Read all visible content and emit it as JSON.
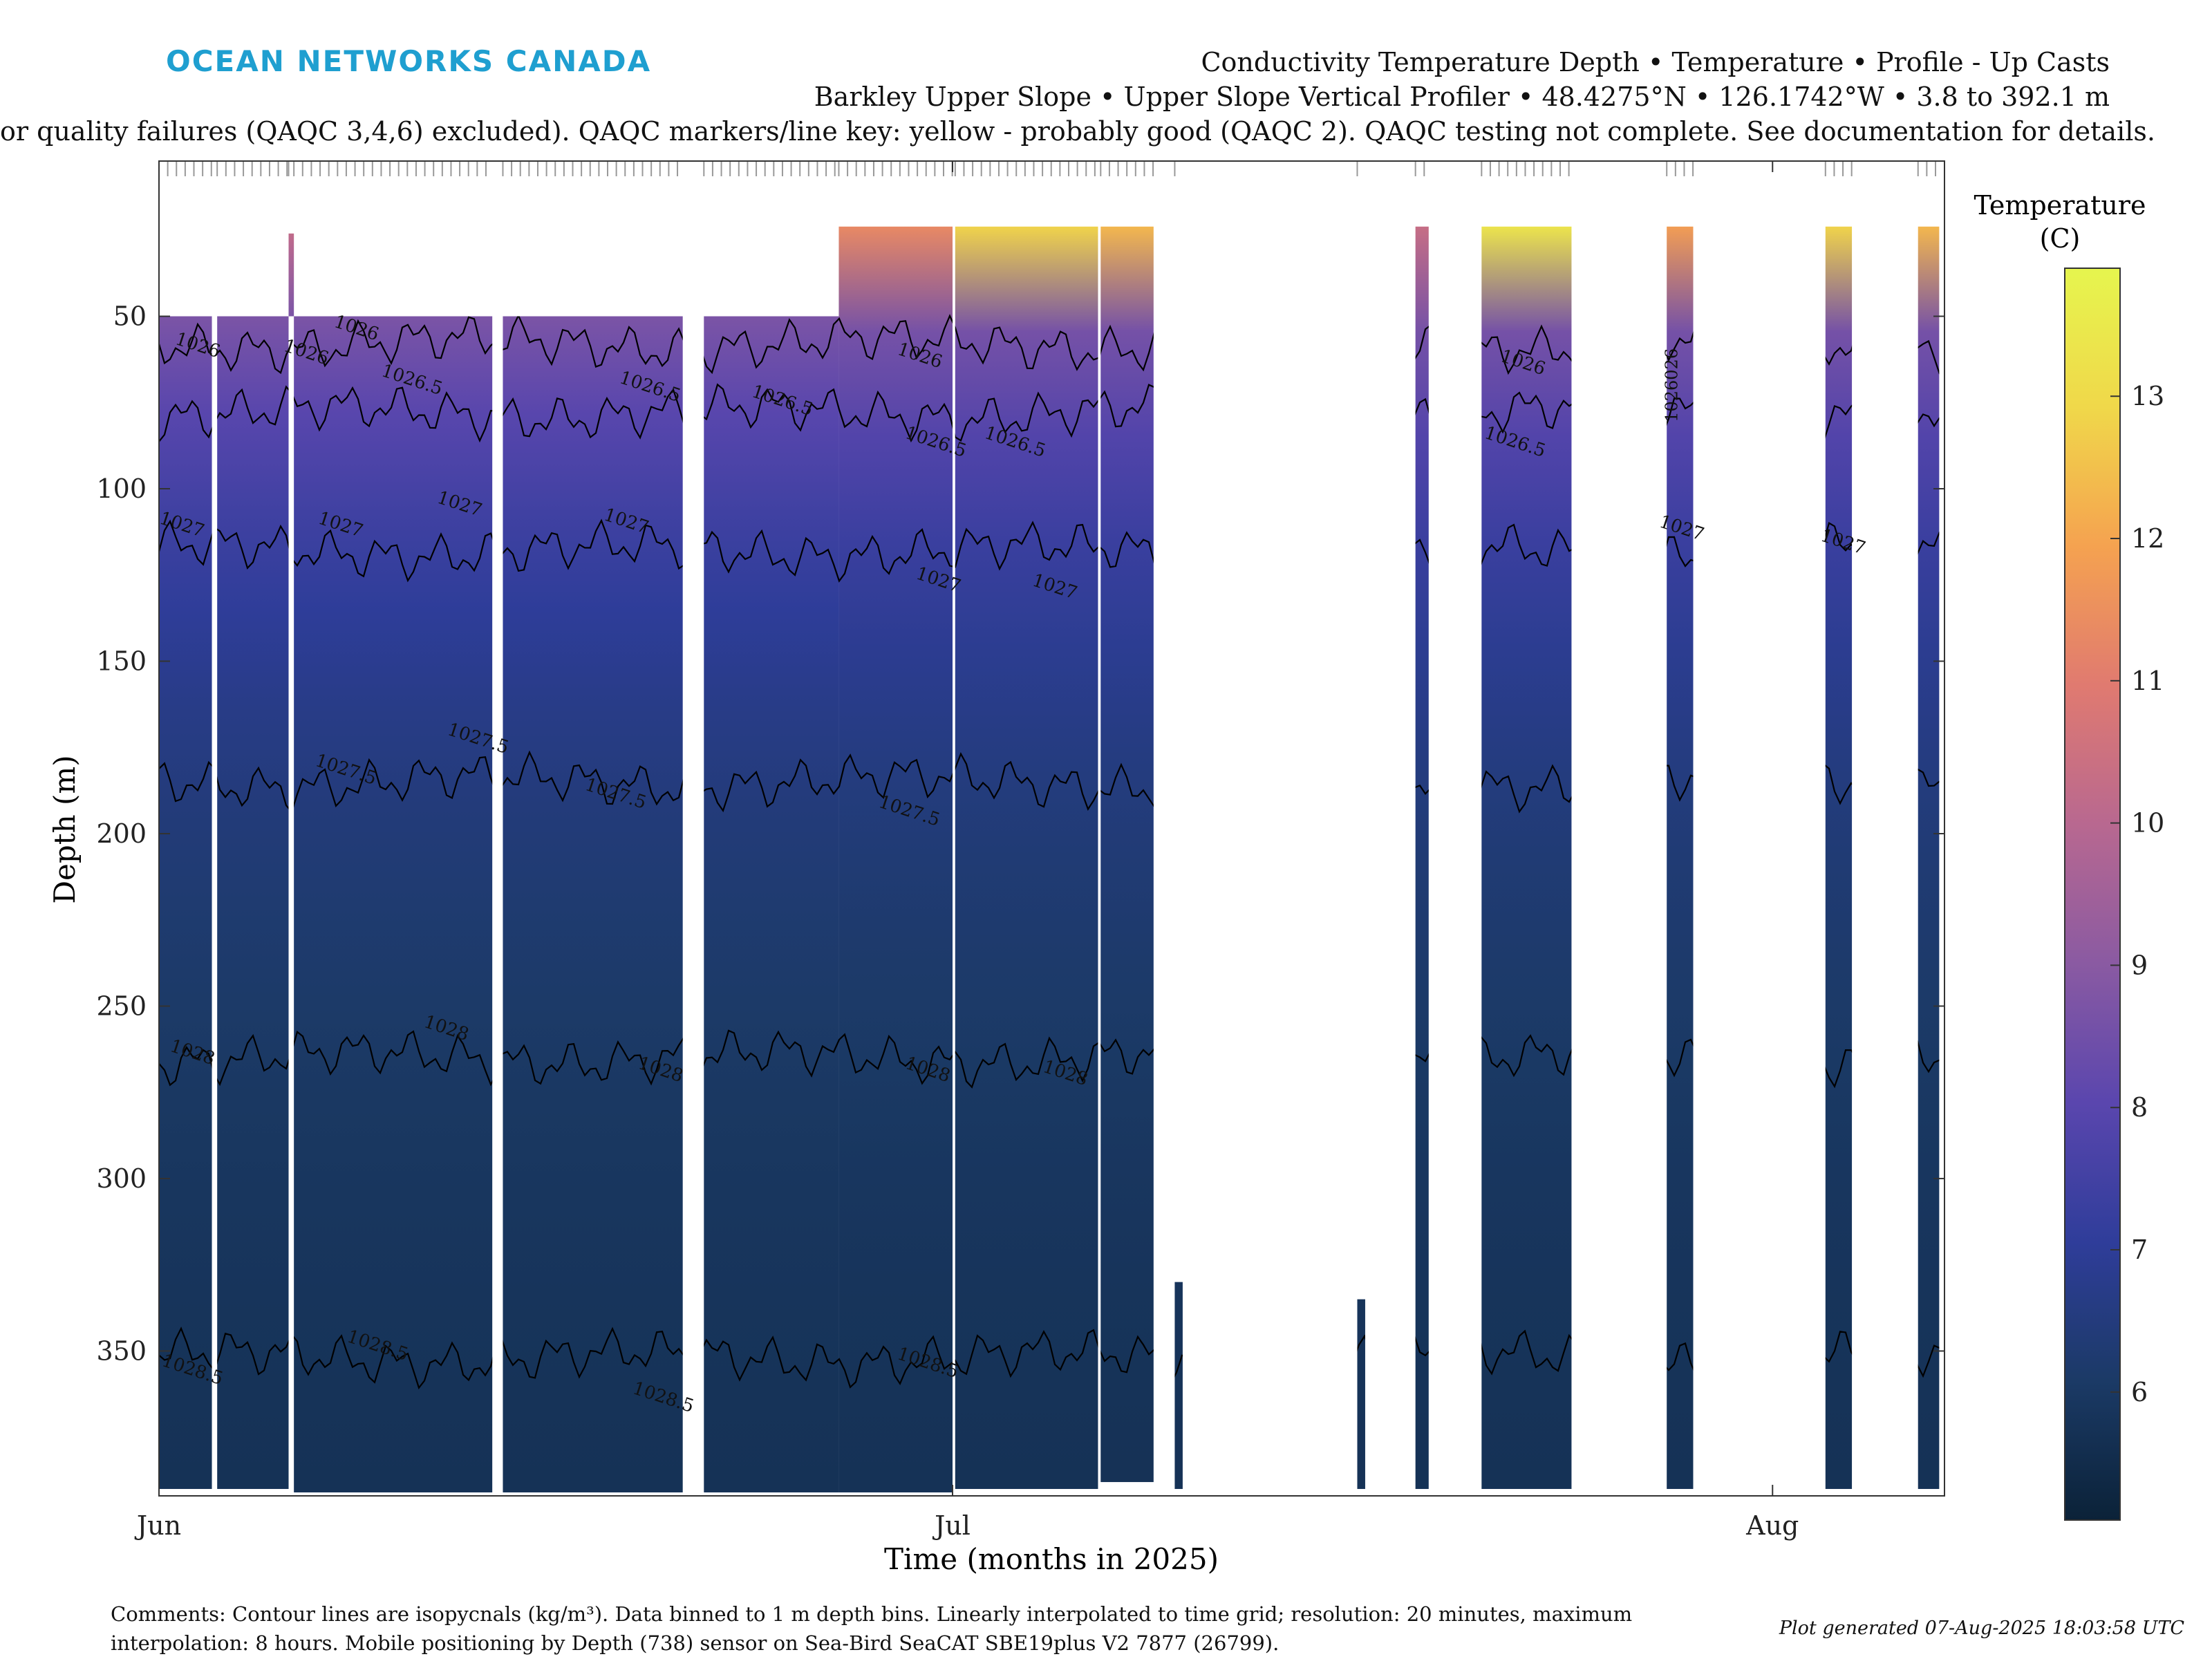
{
  "header": {
    "logo": "OCEAN NETWORKS CANADA",
    "title_line1": "Conductivity Temperature Depth • Temperature • Profile - Up Casts",
    "title_line2": "Barkley Upper Slope • Upper Slope Vertical Profiler • 48.4275°N • 126.1742°W • 3.8 to 392.1 m",
    "title_line3": "or quality failures (QAQC 3,4,6) excluded). QAQC markers/line key: yellow - probably good (QAQC 2). QAQC testing not complete. See documentation for details."
  },
  "footer": {
    "comment_line1": "Comments: Contour lines are isopycnals (kg/m³). Data binned to 1 m depth bins. Linearly interpolated to time grid; resolution: 20 minutes, maximum",
    "comment_line2": "interpolation: 8 hours. Mobile positioning by Depth (738) sensor on Sea-Bird SeaCAT SBE19plus V2 7877 (26799).",
    "generated": "Plot generated 07-Aug-2025 18:03:58 UTC"
  },
  "chart_data": {
    "type": "heatmap",
    "xlabel": "Time (months in 2025)",
    "ylabel": "Depth (m)",
    "x_ticks": [
      {
        "label": "Jun",
        "day": 0
      },
      {
        "label": "Jul",
        "day": 30
      },
      {
        "label": "Aug",
        "day": 61
      }
    ],
    "xlim_days": [
      0,
      67.5
    ],
    "ylim": [
      392,
      5
    ],
    "y_reversed": true,
    "y_ticks": [
      50,
      100,
      150,
      200,
      250,
      300,
      350
    ],
    "colorbar": {
      "label_line1": "Temperature",
      "label_line2": "(C)",
      "range": [
        5.1,
        13.9
      ],
      "ticks": [
        6,
        7,
        8,
        9,
        10,
        11,
        12,
        13
      ],
      "colors": [
        "#0b2238",
        "#1b3a66",
        "#2f3d9a",
        "#5a46ae",
        "#8a5aa2",
        "#b86890",
        "#e07a70",
        "#f5a250",
        "#f0d84a",
        "#e6f54e"
      ]
    },
    "data_blocks": [
      {
        "day_start": 0.0,
        "day_end": 2.0,
        "depth_top": 50,
        "depth_bottom": 390,
        "temp_surface": 9.0
      },
      {
        "day_start": 2.2,
        "day_end": 4.9,
        "depth_top": 50,
        "depth_bottom": 390,
        "temp_surface": 9.0
      },
      {
        "day_start": 4.9,
        "day_end": 5.1,
        "depth_top": 26,
        "depth_bottom": 50,
        "temp_surface": 9.5
      },
      {
        "day_start": 5.1,
        "day_end": 12.6,
        "depth_top": 50,
        "depth_bottom": 391,
        "temp_surface": 8.8
      },
      {
        "day_start": 13.0,
        "day_end": 19.8,
        "depth_top": 50,
        "depth_bottom": 391,
        "temp_surface": 8.4
      },
      {
        "day_start": 20.6,
        "day_end": 25.7,
        "depth_top": 50,
        "depth_bottom": 391,
        "temp_surface": 8.6
      },
      {
        "day_start": 25.7,
        "day_end": 30.0,
        "depth_top": 24,
        "depth_bottom": 391,
        "temp_surface": 10.5
      },
      {
        "day_start": 30.1,
        "day_end": 35.5,
        "depth_top": 24,
        "depth_bottom": 390,
        "temp_surface": 12.0
      },
      {
        "day_start": 35.6,
        "day_end": 37.6,
        "depth_top": 24,
        "depth_bottom": 388,
        "temp_surface": 11.5
      },
      {
        "day_start": 38.4,
        "day_end": 38.7,
        "depth_top": 330,
        "depth_bottom": 390,
        "temp_surface": 5.6
      },
      {
        "day_start": 45.3,
        "day_end": 45.6,
        "depth_top": 335,
        "depth_bottom": 390,
        "temp_surface": 5.6
      },
      {
        "day_start": 47.5,
        "day_end": 48.0,
        "depth_top": 24,
        "depth_bottom": 390,
        "temp_surface": 9.5
      },
      {
        "day_start": 50.0,
        "day_end": 53.4,
        "depth_top": 24,
        "depth_bottom": 390,
        "temp_surface": 12.5
      },
      {
        "day_start": 57.0,
        "day_end": 58.0,
        "depth_top": 24,
        "depth_bottom": 390,
        "temp_surface": 11.0
      },
      {
        "day_start": 63.0,
        "day_end": 64.0,
        "depth_top": 24,
        "depth_bottom": 390,
        "temp_surface": 12.0
      },
      {
        "day_start": 66.5,
        "day_end": 67.3,
        "depth_top": 24,
        "depth_bottom": 390,
        "temp_surface": 11.5
      }
    ],
    "isopycnals": [
      {
        "label": "1026",
        "depth": 58
      },
      {
        "label": "1026.5",
        "depth": 78
      },
      {
        "label": "1027",
        "depth": 118
      },
      {
        "label": "1027.5",
        "depth": 185
      },
      {
        "label": "1028",
        "depth": 265
      },
      {
        "label": "1028.5",
        "depth": 352
      }
    ],
    "isopycnal_label_positions": [
      {
        "label": "1026",
        "day": 1.4,
        "depth": 60
      },
      {
        "label": "1026",
        "day": 5.5,
        "depth": 62
      },
      {
        "label": "1026",
        "day": 7.4,
        "depth": 55
      },
      {
        "label": "1026.5",
        "day": 9.5,
        "depth": 70
      },
      {
        "label": "1026.5",
        "day": 18.5,
        "depth": 72
      },
      {
        "label": "1026.5",
        "day": 23.5,
        "depth": 76
      },
      {
        "label": "1026.5",
        "day": 29.3,
        "depth": 88
      },
      {
        "label": "1026.5",
        "day": 32.3,
        "depth": 88
      },
      {
        "label": "1026",
        "day": 28.7,
        "depth": 63
      },
      {
        "label": "1026",
        "day": 51.5,
        "depth": 65
      },
      {
        "label": "1026.5",
        "day": 51.2,
        "depth": 88
      },
      {
        "label": "1027",
        "day": 0.8,
        "depth": 112
      },
      {
        "label": "1027",
        "day": 6.8,
        "depth": 112
      },
      {
        "label": "1027",
        "day": 11.3,
        "depth": 106
      },
      {
        "label": "1027",
        "day": 17.6,
        "depth": 111
      },
      {
        "label": "1027",
        "day": 29.4,
        "depth": 128
      },
      {
        "label": "1027",
        "day": 33.8,
        "depth": 130
      },
      {
        "label": "1027",
        "day": 57.5,
        "depth": 113
      },
      {
        "label": "1027",
        "day": 63.6,
        "depth": 117
      },
      {
        "label": "1027.5",
        "day": 7.0,
        "depth": 183
      },
      {
        "label": "1027.5",
        "day": 12.0,
        "depth": 174
      },
      {
        "label": "1027.5",
        "day": 17.2,
        "depth": 190
      },
      {
        "label": "1027.5",
        "day": 28.3,
        "depth": 195
      },
      {
        "label": "1028",
        "day": 1.2,
        "depth": 265
      },
      {
        "label": "1028",
        "day": 10.8,
        "depth": 258
      },
      {
        "label": "1028",
        "day": 18.9,
        "depth": 270
      },
      {
        "label": "1028",
        "day": 29.0,
        "depth": 270
      },
      {
        "label": "1028",
        "day": 34.2,
        "depth": 271
      },
      {
        "label": "1028.5",
        "day": 1.2,
        "depth": 357
      },
      {
        "label": "1028.5",
        "day": 8.2,
        "depth": 350
      },
      {
        "label": "1028.5",
        "day": 19.0,
        "depth": 365
      },
      {
        "label": "1028.5",
        "day": 29.0,
        "depth": 355
      }
    ],
    "vertical_label": {
      "label": "1026026",
      "day": 57.4,
      "depth": 70
    }
  }
}
